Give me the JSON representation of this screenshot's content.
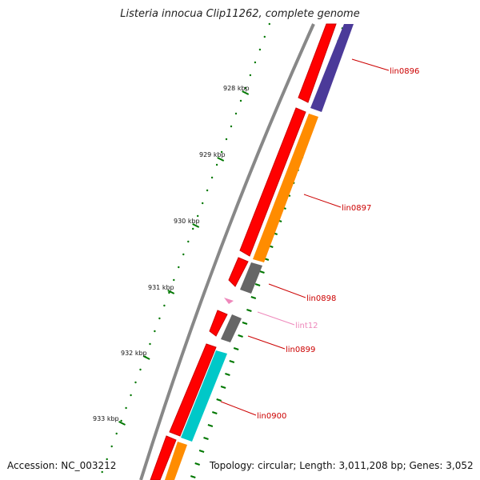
{
  "title": "Listeria innocua Clip11262, complete genome",
  "footer": {
    "accession": "Accession: NC_003212",
    "summary": "Topology: circular; Length: 3,011,208 bp; Genes: 3,052"
  },
  "colors": {
    "forward_cds": "#ff0000",
    "tick": "#007700",
    "backbone": "#888888",
    "label_red": "#cc0000",
    "label_pink": "#ee88bb"
  },
  "kbp_labels": [
    "928 kbp",
    "929 kbp",
    "930 kbp",
    "931 kbp",
    "932 kbp",
    "933 kbp"
  ],
  "features": [
    {
      "name": "lin0896",
      "color": "#4b3a99"
    },
    {
      "name": "lin0897",
      "color": "#ff8c00"
    },
    {
      "name": "lin0898",
      "color": "#666666"
    },
    {
      "name": "lint12",
      "color": "#ee88bb"
    },
    {
      "name": "lin0899",
      "color": "#666666"
    },
    {
      "name": "lin0900",
      "color": "#00c8c8"
    }
  ]
}
